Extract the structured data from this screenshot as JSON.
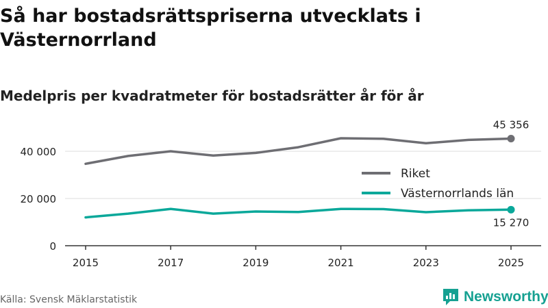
{
  "header": {
    "title": "Så har bostadsrättspriserna utvecklats i Västernorrland",
    "subtitle": "Medelpris per kvadratmeter för bostadsrätter år för år"
  },
  "footer": {
    "source": "Källa: Svensk Mäklarstatistik",
    "brand": "Newsworthy"
  },
  "colors": {
    "riket": "#6e6e73",
    "lan": "#0aa89a",
    "grid": "#dddddd",
    "axis": "#333333",
    "brand": "#16a192"
  },
  "icons": {
    "brand_logo": "newsworthy-logo-icon"
  },
  "chart_data": {
    "type": "line",
    "title": "Medelpris per kvadratmeter för bostadsrätter år för år",
    "xlabel": "",
    "ylabel": "",
    "x": [
      2015,
      2016,
      2017,
      2018,
      2019,
      2020,
      2021,
      2022,
      2023,
      2024,
      2025
    ],
    "xticks": [
      "2015",
      "2017",
      "2019",
      "2021",
      "2023",
      "2025"
    ],
    "yticks": [
      0,
      20000,
      40000
    ],
    "ytick_labels": [
      "0",
      "20 000",
      "40 000"
    ],
    "ylim": [
      0,
      50000
    ],
    "grid": true,
    "legend_position": "right",
    "series": [
      {
        "name": "Riket",
        "values": [
          34700,
          38000,
          40000,
          38200,
          39300,
          41700,
          45500,
          45300,
          43400,
          44800,
          45356
        ],
        "end_label": "45 356"
      },
      {
        "name": "Västernorrlands län",
        "values": [
          12000,
          13600,
          15600,
          13600,
          14500,
          14300,
          15600,
          15500,
          14200,
          15000,
          15270
        ],
        "end_label": "15 270"
      }
    ]
  }
}
